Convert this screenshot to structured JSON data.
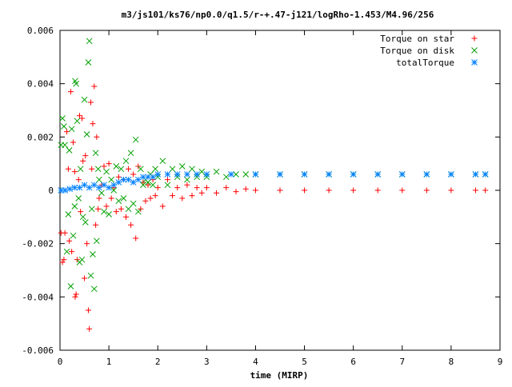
{
  "chart_data": {
    "type": "scatter",
    "title": "m3/js101/ks76/np0.0/q1.5/r-+.47-j121/logRho-1.453/M4.96/256",
    "xlabel": "time (MIRP)",
    "ylabel": "",
    "xlim": [
      0,
      9
    ],
    "ylim": [
      -0.006,
      0.006
    ],
    "x_ticks": [
      "0",
      "1",
      "2",
      "3",
      "4",
      "5",
      "6",
      "7",
      "8",
      "9"
    ],
    "y_ticks": [
      "0.006",
      "0.004",
      "0.002",
      "0",
      "-0.002",
      "-0.004",
      "-0.006"
    ],
    "grid": false,
    "legend_position": "top-right",
    "series": [
      {
        "name": "Torque on star",
        "marker": "plus",
        "color": "#ff0000",
        "points": [
          [
            0.02,
            -0.0016
          ],
          [
            0.05,
            -0.0027
          ],
          [
            0.08,
            -0.0026
          ],
          [
            0.1,
            -0.0016
          ],
          [
            0.14,
            0.0022
          ],
          [
            0.17,
            0.0008
          ],
          [
            0.19,
            -0.0019
          ],
          [
            0.22,
            0.0037
          ],
          [
            0.24,
            -0.0023
          ],
          [
            0.27,
            0.0018
          ],
          [
            0.3,
            0.0007
          ],
          [
            0.31,
            -0.004
          ],
          [
            0.33,
            -0.0039
          ],
          [
            0.35,
            -0.0026
          ],
          [
            0.38,
            0.0004
          ],
          [
            0.4,
            0.0028
          ],
          [
            0.42,
            -0.0008
          ],
          [
            0.45,
            0.0027
          ],
          [
            0.47,
            0.0011
          ],
          [
            0.5,
            -0.0033
          ],
          [
            0.52,
            0.0013
          ],
          [
            0.55,
            -0.002
          ],
          [
            0.58,
            -0.0045
          ],
          [
            0.6,
            -0.0052
          ],
          [
            0.63,
            0.0033
          ],
          [
            0.65,
            0.0008
          ],
          [
            0.67,
            0.0025
          ],
          [
            0.7,
            0.0039
          ],
          [
            0.73,
            -0.0013
          ],
          [
            0.75,
            0.002
          ],
          [
            0.78,
            -0.0007
          ],
          [
            0.8,
            -0.0003
          ],
          [
            0.85,
            0.0002
          ],
          [
            0.9,
            0.0009
          ],
          [
            0.95,
            -0.0006
          ],
          [
            1.0,
            0.001
          ],
          [
            1.05,
            -0.0003
          ],
          [
            1.1,
            0.0001
          ],
          [
            1.15,
            -0.0008
          ],
          [
            1.2,
            0.0005
          ],
          [
            1.25,
            -0.0007
          ],
          [
            1.3,
            0.0004
          ],
          [
            1.35,
            -0.001
          ],
          [
            1.4,
            0.0008
          ],
          [
            1.45,
            -0.0013
          ],
          [
            1.5,
            0.0006
          ],
          [
            1.55,
            -0.0018
          ],
          [
            1.6,
            0.0009
          ],
          [
            1.65,
            -0.0007
          ],
          [
            1.7,
            0.0003
          ],
          [
            1.75,
            -0.0004
          ],
          [
            1.8,
            0.0002
          ],
          [
            1.85,
            -0.0003
          ],
          [
            1.9,
            0.0004
          ],
          [
            1.95,
            -0.0002
          ],
          [
            2.0,
            0.0001
          ],
          [
            2.1,
            -0.0006
          ],
          [
            2.2,
            0.0004
          ],
          [
            2.3,
            -0.0002
          ],
          [
            2.4,
            0.0001
          ],
          [
            2.5,
            -0.0003
          ],
          [
            2.6,
            0.0002
          ],
          [
            2.7,
            -0.0002
          ],
          [
            2.8,
            0.0001
          ],
          [
            2.9,
            -0.0001
          ],
          [
            3.0,
            0.0001
          ],
          [
            3.2,
            -0.0001
          ],
          [
            3.4,
            0.0001
          ],
          [
            3.6,
            -5e-05
          ],
          [
            3.8,
            5e-05
          ],
          [
            4.0,
            0.0
          ],
          [
            4.5,
            0.0
          ],
          [
            5.0,
            0.0
          ],
          [
            5.5,
            0.0
          ],
          [
            6.0,
            0.0
          ],
          [
            6.5,
            0.0
          ],
          [
            7.0,
            0.0
          ],
          [
            7.5,
            0.0
          ],
          [
            8.0,
            0.0
          ],
          [
            8.5,
            0.0
          ],
          [
            8.7,
            0.0
          ]
        ]
      },
      {
        "name": "Torque on disk",
        "marker": "cross",
        "color": "#00a000",
        "points": [
          [
            0.02,
            0.0017
          ],
          [
            0.05,
            0.0027
          ],
          [
            0.08,
            0.0024
          ],
          [
            0.1,
            0.0017
          ],
          [
            0.14,
            -0.0023
          ],
          [
            0.17,
            -0.0009
          ],
          [
            0.19,
            0.0015
          ],
          [
            0.22,
            -0.0036
          ],
          [
            0.24,
            0.0023
          ],
          [
            0.27,
            -0.0017
          ],
          [
            0.3,
            -0.0006
          ],
          [
            0.31,
            0.0041
          ],
          [
            0.33,
            0.004
          ],
          [
            0.35,
            0.0026
          ],
          [
            0.38,
            -0.0003
          ],
          [
            0.4,
            -0.0027
          ],
          [
            0.42,
            0.0008
          ],
          [
            0.45,
            -0.0026
          ],
          [
            0.47,
            -0.001
          ],
          [
            0.5,
            0.0034
          ],
          [
            0.52,
            -0.0012
          ],
          [
            0.55,
            0.0021
          ],
          [
            0.58,
            0.0048
          ],
          [
            0.6,
            0.0056
          ],
          [
            0.63,
            -0.0032
          ],
          [
            0.65,
            -0.0007
          ],
          [
            0.67,
            -0.0024
          ],
          [
            0.7,
            -0.0037
          ],
          [
            0.73,
            0.0014
          ],
          [
            0.75,
            -0.0019
          ],
          [
            0.78,
            0.0008
          ],
          [
            0.8,
            0.0004
          ],
          [
            0.85,
            -0.0001
          ],
          [
            0.9,
            -0.0008
          ],
          [
            0.95,
            0.0007
          ],
          [
            1.0,
            -0.0009
          ],
          [
            1.05,
            0.0004
          ],
          [
            1.1,
            0.0
          ],
          [
            1.15,
            0.0009
          ],
          [
            1.2,
            -0.0004
          ],
          [
            1.25,
            0.0008
          ],
          [
            1.3,
            -0.0003
          ],
          [
            1.35,
            0.0011
          ],
          [
            1.4,
            -0.0007
          ],
          [
            1.45,
            0.0014
          ],
          [
            1.5,
            -0.0005
          ],
          [
            1.55,
            0.0019
          ],
          [
            1.6,
            -0.0008
          ],
          [
            1.65,
            0.0008
          ],
          [
            1.7,
            0.0002
          ],
          [
            1.75,
            0.0004
          ],
          [
            1.8,
            0.0003
          ],
          [
            1.85,
            0.0006
          ],
          [
            1.9,
            0.0002
          ],
          [
            1.95,
            0.0008
          ],
          [
            2.0,
            0.0005
          ],
          [
            2.1,
            0.0011
          ],
          [
            2.2,
            0.0002
          ],
          [
            2.3,
            0.0008
          ],
          [
            2.4,
            0.0005
          ],
          [
            2.5,
            0.0009
          ],
          [
            2.6,
            0.0004
          ],
          [
            2.7,
            0.0008
          ],
          [
            2.8,
            0.0005
          ],
          [
            2.9,
            0.0007
          ],
          [
            3.0,
            0.0005
          ],
          [
            3.2,
            0.0007
          ],
          [
            3.4,
            0.0005
          ],
          [
            3.6,
            0.0006
          ],
          [
            3.8,
            0.0006
          ],
          [
            4.0,
            0.0006
          ],
          [
            4.5,
            0.0006
          ],
          [
            5.0,
            0.0006
          ],
          [
            5.5,
            0.0006
          ],
          [
            6.0,
            0.0006
          ],
          [
            6.5,
            0.0006
          ],
          [
            7.0,
            0.0006
          ],
          [
            7.5,
            0.0006
          ],
          [
            8.0,
            0.0006
          ],
          [
            8.5,
            0.0006
          ],
          [
            8.7,
            0.0006
          ]
        ]
      },
      {
        "name": "totalTorque",
        "marker": "star",
        "color": "#0080ff",
        "points": [
          [
            0.02,
            0.0
          ],
          [
            0.1,
            0.0
          ],
          [
            0.2,
            5e-05
          ],
          [
            0.3,
            0.0001
          ],
          [
            0.4,
            0.0001
          ],
          [
            0.5,
            0.0002
          ],
          [
            0.6,
            0.0001
          ],
          [
            0.7,
            0.0002
          ],
          [
            0.8,
            0.0001
          ],
          [
            0.9,
            0.0002
          ],
          [
            1.0,
            0.0001
          ],
          [
            1.1,
            0.0002
          ],
          [
            1.2,
            0.0003
          ],
          [
            1.3,
            0.0004
          ],
          [
            1.4,
            0.0004
          ],
          [
            1.5,
            0.0003
          ],
          [
            1.6,
            0.0004
          ],
          [
            1.7,
            0.0005
          ],
          [
            1.8,
            0.0005
          ],
          [
            1.9,
            0.0005
          ],
          [
            2.0,
            0.0006
          ],
          [
            2.2,
            0.0006
          ],
          [
            2.4,
            0.0006
          ],
          [
            2.6,
            0.0006
          ],
          [
            2.8,
            0.0006
          ],
          [
            3.0,
            0.0006
          ],
          [
            3.5,
            0.0006
          ],
          [
            4.0,
            0.0006
          ],
          [
            4.5,
            0.0006
          ],
          [
            5.0,
            0.0006
          ],
          [
            5.5,
            0.0006
          ],
          [
            6.0,
            0.0006
          ],
          [
            6.5,
            0.0006
          ],
          [
            7.0,
            0.0006
          ],
          [
            7.5,
            0.0006
          ],
          [
            8.0,
            0.0006
          ],
          [
            8.5,
            0.0006
          ],
          [
            8.7,
            0.0006
          ]
        ]
      }
    ]
  }
}
